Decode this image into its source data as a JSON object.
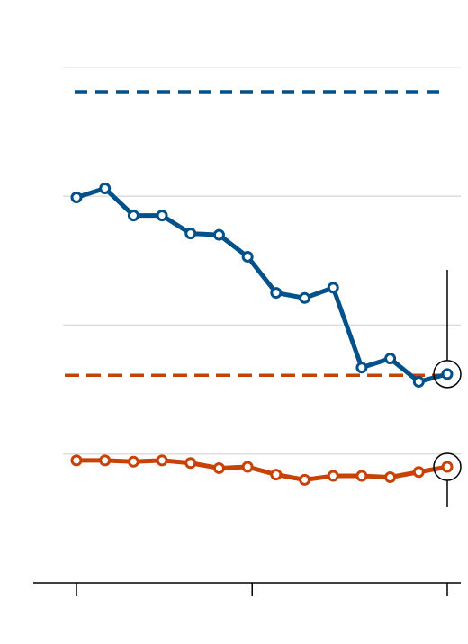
{
  "chart_data": {
    "type": "line",
    "title": "",
    "xlabel": "",
    "ylabel": "",
    "x": [
      1,
      2,
      3,
      4,
      5,
      6,
      7,
      8,
      9,
      10,
      11,
      12,
      13,
      14
    ],
    "ylim": [
      0,
      4.1
    ],
    "yticks": [
      1,
      2,
      3,
      4
    ],
    "grid": true,
    "series": [
      {
        "color": "#00508a",
        "values": [
          2.99,
          3.06,
          2.85,
          2.85,
          2.71,
          2.7,
          2.53,
          2.25,
          2.21,
          2.29,
          1.67,
          1.74,
          1.56,
          1.62
        ],
        "reference": 3.81
      },
      {
        "color": "#c84106",
        "values": [
          0.95,
          0.95,
          0.94,
          0.95,
          0.93,
          0.89,
          0.9,
          0.84,
          0.8,
          0.83,
          0.83,
          0.82,
          0.86,
          0.9
        ],
        "reference": 1.61
      }
    ]
  }
}
